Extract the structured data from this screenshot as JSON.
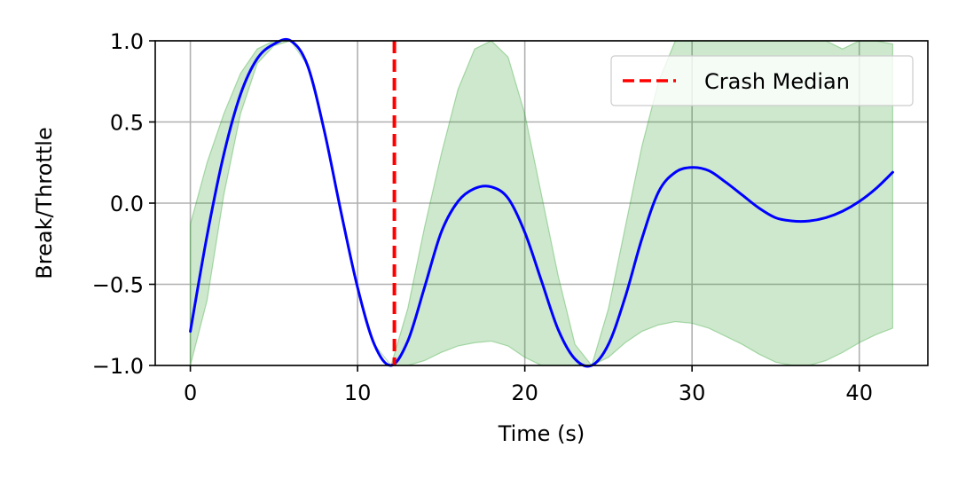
{
  "chart_data": {
    "type": "line",
    "title": "",
    "xlabel": "Time (s)",
    "ylabel": "Break/Throttle",
    "xlim": [
      -2.1,
      44.1
    ],
    "ylim": [
      -1.0,
      1.0
    ],
    "xticks": [
      0,
      10,
      20,
      30,
      40
    ],
    "xtick_labels": [
      "0",
      "10",
      "20",
      "30",
      "40"
    ],
    "yticks": [
      -1.0,
      -0.5,
      0.0,
      0.5,
      1.0
    ],
    "ytick_labels": [
      "−1.0",
      "−0.5",
      "0.0",
      "0.5",
      "1.0"
    ],
    "grid": true,
    "legend_position": "upper right",
    "series": [
      {
        "kind": "line",
        "color": "#0000ff",
        "x": [
          0,
          1,
          2,
          3,
          4,
          5,
          6,
          7,
          8,
          9,
          10,
          11,
          12,
          13,
          14,
          15,
          16,
          17,
          18,
          19,
          20,
          21,
          22,
          23,
          24,
          25,
          26,
          27,
          28,
          29,
          30,
          31,
          32,
          33,
          34,
          35,
          36,
          37,
          38,
          39,
          40,
          41,
          42
        ],
        "y": [
          -0.79,
          -0.2,
          0.3,
          0.67,
          0.89,
          0.98,
          1.0,
          0.85,
          0.45,
          -0.05,
          -0.52,
          -0.87,
          -1.0,
          -0.85,
          -0.52,
          -0.18,
          0.01,
          0.09,
          0.1,
          0.03,
          -0.18,
          -0.48,
          -0.78,
          -0.96,
          -1.0,
          -0.87,
          -0.58,
          -0.22,
          0.07,
          0.19,
          0.22,
          0.2,
          0.13,
          0.05,
          -0.03,
          -0.09,
          -0.11,
          -0.11,
          -0.09,
          -0.05,
          0.01,
          0.09,
          0.19
        ]
      },
      {
        "kind": "band",
        "color": "#2ca02c",
        "opacity": 0.24,
        "x": [
          0,
          1,
          2,
          3,
          4,
          5,
          6,
          7,
          8,
          9,
          10,
          11,
          12,
          13,
          14,
          15,
          16,
          17,
          18,
          19,
          20,
          21,
          22,
          23,
          24,
          25,
          26,
          27,
          28,
          29,
          30,
          31,
          32,
          33,
          34,
          35,
          36,
          37,
          38,
          39,
          40,
          41,
          42
        ],
        "lower": [
          -1.0,
          -0.6,
          0.05,
          0.55,
          0.86,
          0.97,
          1.0,
          0.85,
          0.45,
          -0.05,
          -0.52,
          -0.87,
          -1.0,
          -1.0,
          -0.97,
          -0.92,
          -0.88,
          -0.86,
          -0.85,
          -0.88,
          -0.95,
          -1.0,
          -1.0,
          -1.0,
          -1.0,
          -0.95,
          -0.86,
          -0.79,
          -0.75,
          -0.73,
          -0.74,
          -0.77,
          -0.82,
          -0.87,
          -0.93,
          -0.98,
          -1.0,
          -1.0,
          -0.97,
          -0.92,
          -0.86,
          -0.81,
          -0.77
        ],
        "upper": [
          -0.13,
          0.25,
          0.55,
          0.8,
          0.95,
          1.0,
          1.0,
          0.85,
          0.45,
          -0.05,
          -0.52,
          -0.87,
          -1.0,
          -0.65,
          -0.15,
          0.3,
          0.7,
          0.95,
          1.0,
          0.9,
          0.55,
          0.05,
          -0.45,
          -0.87,
          -1.0,
          -0.65,
          -0.15,
          0.35,
          0.75,
          1.0,
          1.0,
          1.0,
          1.0,
          1.0,
          1.0,
          1.0,
          1.0,
          1.0,
          1.0,
          0.95,
          1.0,
          1.0,
          0.98
        ]
      },
      {
        "kind": "vline",
        "name": "Crash Median",
        "color": "#ff0000",
        "x": 12.2
      }
    ]
  }
}
